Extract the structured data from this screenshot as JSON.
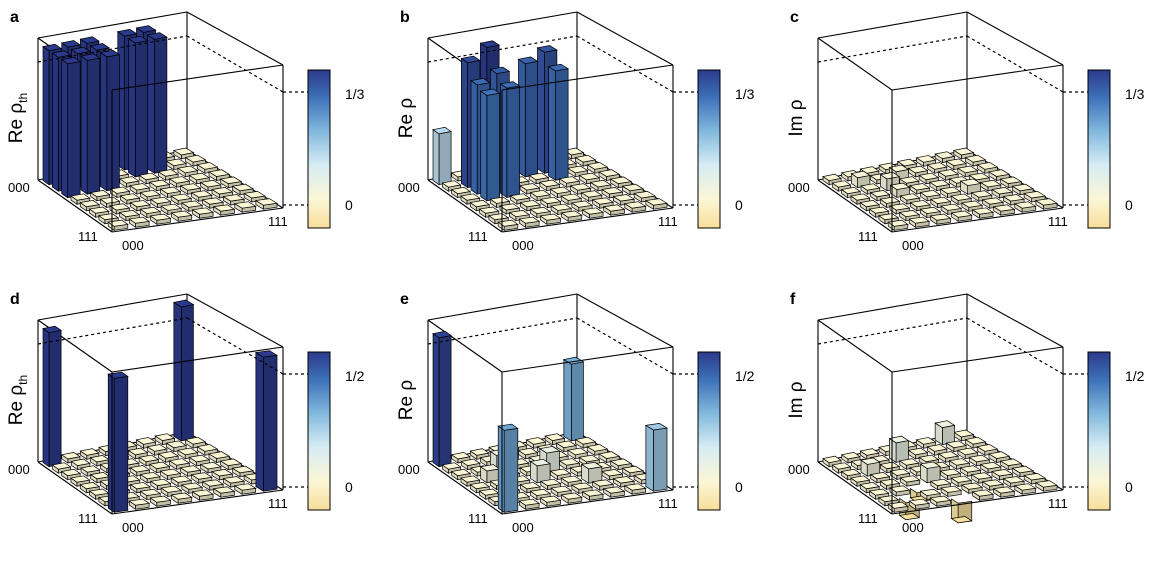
{
  "chart_data": [
    {
      "panel": "a",
      "type": "bar3d",
      "zlabel_main": "Re ρ",
      "zlabel_sub": "th",
      "row_label": "000",
      "row_end_label": "111",
      "col_label": "000",
      "col_end_label": "111",
      "colorbar_labels": [
        "1/3",
        "0"
      ],
      "zlim": [
        0,
        0.3333
      ],
      "bars": [
        {
          "row": 0,
          "col": 0,
          "value": 0.333
        },
        {
          "row": 0,
          "col": 1,
          "value": 0.333
        },
        {
          "row": 0,
          "col": 2,
          "value": 0.333
        },
        {
          "row": 1,
          "col": 0,
          "value": 0.333
        },
        {
          "row": 1,
          "col": 1,
          "value": 0.333
        },
        {
          "row": 1,
          "col": 2,
          "value": 0.333
        },
        {
          "row": 2,
          "col": 0,
          "value": 0.333
        },
        {
          "row": 2,
          "col": 1,
          "value": 0.333
        },
        {
          "row": 2,
          "col": 2,
          "value": 0.333
        },
        {
          "row": 0,
          "col": 4,
          "value": 0.333
        },
        {
          "row": 0,
          "col": 5,
          "value": 0.333
        },
        {
          "row": 1,
          "col": 4,
          "value": 0.333
        },
        {
          "row": 1,
          "col": 5,
          "value": 0.333
        }
      ]
    },
    {
      "panel": "b",
      "type": "bar3d",
      "zlabel_main": "Re ρ",
      "zlabel_sub": "",
      "row_label": "000",
      "row_end_label": "111",
      "col_label": "000",
      "col_end_label": "111",
      "colorbar_labels": [
        "1/3",
        "0"
      ],
      "zlim": [
        0,
        0.3333
      ],
      "bars": [
        {
          "row": 0,
          "col": 0,
          "value": 0.12
        },
        {
          "row": 1,
          "col": 1,
          "value": 0.31
        },
        {
          "row": 1,
          "col": 2,
          "value": 0.34
        },
        {
          "row": 2,
          "col": 1,
          "value": 0.27
        },
        {
          "row": 2,
          "col": 2,
          "value": 0.29
        },
        {
          "row": 3,
          "col": 1,
          "value": 0.26
        },
        {
          "row": 3,
          "col": 2,
          "value": 0.27
        },
        {
          "row": 1,
          "col": 4,
          "value": 0.28
        },
        {
          "row": 1,
          "col": 5,
          "value": 0.3
        },
        {
          "row": 2,
          "col": 5,
          "value": 0.27
        }
      ]
    },
    {
      "panel": "c",
      "type": "bar3d",
      "zlabel_main": "Im ρ",
      "zlabel_sub": "",
      "row_label": "000",
      "row_end_label": "111",
      "col_label": "000",
      "col_end_label": "111",
      "colorbar_labels": [
        "1/3",
        "0"
      ],
      "zlim": [
        0,
        0.3333
      ],
      "bars": [
        {
          "row": 1,
          "col": 1,
          "value": 0.015
        },
        {
          "row": 2,
          "col": 2,
          "value": 0.02
        },
        {
          "row": 1,
          "col": 3,
          "value": 0.012
        },
        {
          "row": 3,
          "col": 2,
          "value": 0.01
        },
        {
          "row": 4,
          "col": 5,
          "value": 0.012
        }
      ]
    },
    {
      "panel": "d",
      "type": "bar3d",
      "zlabel_main": "Re ρ",
      "zlabel_sub": "th",
      "row_label": "000",
      "row_end_label": "111",
      "col_label": "000",
      "col_end_label": "111",
      "colorbar_labels": [
        "1/2",
        "0"
      ],
      "zlim": [
        0,
        0.5
      ],
      "bars": [
        {
          "row": 0,
          "col": 0,
          "value": 0.5
        },
        {
          "row": 0,
          "col": 7,
          "value": 0.5
        },
        {
          "row": 7,
          "col": 0,
          "value": 0.5
        },
        {
          "row": 7,
          "col": 7,
          "value": 0.5
        }
      ]
    },
    {
      "panel": "e",
      "type": "bar3d",
      "zlabel_main": "Re ρ",
      "zlabel_sub": "",
      "row_label": "000",
      "row_end_label": "111",
      "col_label": "000",
      "col_end_label": "111",
      "colorbar_labels": [
        "1/2",
        "0"
      ],
      "zlim": [
        0,
        0.5
      ],
      "bars": [
        {
          "row": 0,
          "col": 0,
          "value": 0.48
        },
        {
          "row": 0,
          "col": 7,
          "value": 0.28
        },
        {
          "row": 7,
          "col": 0,
          "value": 0.3
        },
        {
          "row": 7,
          "col": 7,
          "value": 0.22
        },
        {
          "row": 2,
          "col": 2,
          "value": 0.05
        },
        {
          "row": 3,
          "col": 4,
          "value": 0.06
        },
        {
          "row": 4,
          "col": 3,
          "value": 0.05
        },
        {
          "row": 5,
          "col": 5,
          "value": 0.04
        },
        {
          "row": 1,
          "col": 3,
          "value": 0.03
        },
        {
          "row": 3,
          "col": 1,
          "value": 0.03
        }
      ]
    },
    {
      "panel": "f",
      "type": "bar3d",
      "zlabel_main": "Im ρ",
      "zlabel_sub": "",
      "row_label": "000",
      "row_end_label": "111",
      "col_label": "000",
      "col_end_label": "111",
      "colorbar_labels": [
        "1/2",
        "0"
      ],
      "zlim": [
        -0.5,
        0.5
      ],
      "bars": [
        {
          "row": 1,
          "col": 3,
          "value": 0.06
        },
        {
          "row": 0,
          "col": 6,
          "value": 0.05
        },
        {
          "row": 4,
          "col": 3,
          "value": 0.04
        },
        {
          "row": 2,
          "col": 1,
          "value": 0.03
        },
        {
          "row": 6,
          "col": 1,
          "value": -0.05
        },
        {
          "row": 7,
          "col": 3,
          "value": -0.06
        },
        {
          "row": 5,
          "col": 2,
          "value": -0.02
        }
      ]
    }
  ]
}
